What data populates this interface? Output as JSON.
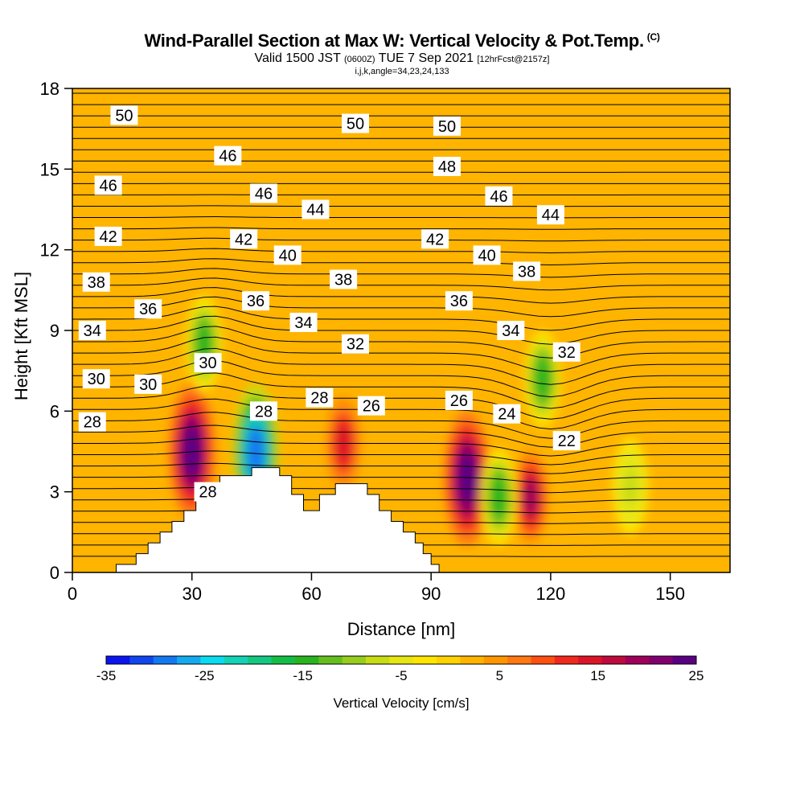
{
  "header": {
    "title": "Wind-Parallel Section at Max W: Vertical Velocity & Pot.Temp.",
    "copyright": "(C)",
    "valid_prefix": "Valid 1500 JST",
    "valid_utc": "(0600Z)",
    "valid_date": "TUE 7 Sep 2021",
    "forecast": "[12hrFcst@2157z]",
    "indices": "i,j,k,angle=34,23,24,133"
  },
  "colors": {
    "palette": [
      "#0a14f0",
      "#0f46f0",
      "#1478f0",
      "#14aaf0",
      "#0adcf0",
      "#14d2b4",
      "#14c882",
      "#14be46",
      "#28b41e",
      "#64be1e",
      "#96cd1e",
      "#c8dc14",
      "#e6e614",
      "#ffe600",
      "#ffd200",
      "#ffb400",
      "#ff9600",
      "#ff7814",
      "#ff5014",
      "#f0281e",
      "#dc1428",
      "#be0a3c",
      "#a0005a",
      "#82006e",
      "#5a0082"
    ]
  },
  "chart_data": {
    "type": "heatmap",
    "xlabel": "Distance [nm]",
    "ylabel": "Height [Kft MSL]",
    "xlim": [
      0,
      165
    ],
    "ylim": [
      0,
      18
    ],
    "xticks": [
      0,
      30,
      60,
      90,
      120,
      150
    ],
    "yticks": [
      0,
      3,
      6,
      9,
      12,
      15,
      18
    ],
    "colorbar": {
      "label": "Vertical Velocity [cm/s]",
      "min": -35,
      "max": 25,
      "ticks": [
        -35,
        -25,
        -15,
        -5,
        5,
        15,
        25
      ]
    },
    "vertical_velocity_cells": [
      {
        "x": 30,
        "y": 4.5,
        "value": 25
      },
      {
        "x": 46,
        "y": 4.5,
        "value": -30
      },
      {
        "x": 68,
        "y": 4.8,
        "value": 15
      },
      {
        "x": 99,
        "y": 3.5,
        "value": 25
      },
      {
        "x": 115,
        "y": 2.8,
        "value": 18
      },
      {
        "x": 107,
        "y": 2.8,
        "value": -15
      },
      {
        "x": 33,
        "y": 8.5,
        "value": -15
      },
      {
        "x": 118,
        "y": 7.2,
        "value": -15
      },
      {
        "x": 140,
        "y": 3.2,
        "value": -8
      }
    ],
    "theta_labels": [
      {
        "x": 13,
        "y": 17.0,
        "text": "50"
      },
      {
        "x": 71,
        "y": 16.7,
        "text": "50"
      },
      {
        "x": 94,
        "y": 16.6,
        "text": "50"
      },
      {
        "x": 39,
        "y": 15.5,
        "text": "46"
      },
      {
        "x": 94,
        "y": 15.1,
        "text": "48"
      },
      {
        "x": 9,
        "y": 14.4,
        "text": "46"
      },
      {
        "x": 48,
        "y": 14.1,
        "text": "46"
      },
      {
        "x": 107,
        "y": 14.0,
        "text": "46"
      },
      {
        "x": 61,
        "y": 13.5,
        "text": "44"
      },
      {
        "x": 120,
        "y": 13.3,
        "text": "44"
      },
      {
        "x": 9,
        "y": 12.5,
        "text": "42"
      },
      {
        "x": 43,
        "y": 12.4,
        "text": "42"
      },
      {
        "x": 91,
        "y": 12.4,
        "text": "42"
      },
      {
        "x": 54,
        "y": 11.8,
        "text": "40"
      },
      {
        "x": 104,
        "y": 11.8,
        "text": "40"
      },
      {
        "x": 114,
        "y": 11.2,
        "text": "38"
      },
      {
        "x": 6,
        "y": 10.8,
        "text": "38"
      },
      {
        "x": 68,
        "y": 10.9,
        "text": "38"
      },
      {
        "x": 97,
        "y": 10.1,
        "text": "36"
      },
      {
        "x": 19,
        "y": 9.8,
        "text": "36"
      },
      {
        "x": 46,
        "y": 10.1,
        "text": "36"
      },
      {
        "x": 58,
        "y": 9.3,
        "text": "34"
      },
      {
        "x": 5,
        "y": 9.0,
        "text": "34"
      },
      {
        "x": 110,
        "y": 9.0,
        "text": "34"
      },
      {
        "x": 71,
        "y": 8.5,
        "text": "32"
      },
      {
        "x": 124,
        "y": 8.2,
        "text": "32"
      },
      {
        "x": 34,
        "y": 7.8,
        "text": "30"
      },
      {
        "x": 6,
        "y": 7.2,
        "text": "30"
      },
      {
        "x": 19,
        "y": 7.0,
        "text": "30"
      },
      {
        "x": 62,
        "y": 6.5,
        "text": "28"
      },
      {
        "x": 48,
        "y": 6.0,
        "text": "28"
      },
      {
        "x": 75,
        "y": 6.2,
        "text": "26"
      },
      {
        "x": 97,
        "y": 6.4,
        "text": "26"
      },
      {
        "x": 109,
        "y": 5.9,
        "text": "24"
      },
      {
        "x": 5,
        "y": 5.6,
        "text": "28"
      },
      {
        "x": 124,
        "y": 4.9,
        "text": "22"
      },
      {
        "x": 34,
        "y": 3.0,
        "text": "28"
      }
    ],
    "terrain": [
      [
        11,
        0
      ],
      [
        11,
        0.3
      ],
      [
        16,
        0.3
      ],
      [
        16,
        0.7
      ],
      [
        19,
        0.7
      ],
      [
        19,
        1.1
      ],
      [
        22,
        1.1
      ],
      [
        22,
        1.5
      ],
      [
        25,
        1.5
      ],
      [
        25,
        1.9
      ],
      [
        28,
        1.9
      ],
      [
        28,
        2.3
      ],
      [
        31,
        2.3
      ],
      [
        31,
        2.7
      ],
      [
        34,
        2.7
      ],
      [
        34,
        3.1
      ],
      [
        37,
        3.1
      ],
      [
        37,
        3.6
      ],
      [
        45,
        3.6
      ],
      [
        45,
        3.9
      ],
      [
        52,
        3.9
      ],
      [
        52,
        3.6
      ],
      [
        55,
        3.6
      ],
      [
        55,
        2.9
      ],
      [
        58,
        2.9
      ],
      [
        58,
        2.3
      ],
      [
        62,
        2.3
      ],
      [
        62,
        2.9
      ],
      [
        66,
        2.9
      ],
      [
        66,
        3.3
      ],
      [
        74,
        3.3
      ],
      [
        74,
        2.9
      ],
      [
        77,
        2.9
      ],
      [
        77,
        2.3
      ],
      [
        80,
        2.3
      ],
      [
        80,
        1.9
      ],
      [
        83,
        1.9
      ],
      [
        83,
        1.5
      ],
      [
        86,
        1.5
      ],
      [
        86,
        1.1
      ],
      [
        88,
        1.1
      ],
      [
        88,
        0.7
      ],
      [
        90,
        0.7
      ],
      [
        90,
        0.3
      ],
      [
        92,
        0.3
      ],
      [
        92,
        0
      ]
    ]
  }
}
